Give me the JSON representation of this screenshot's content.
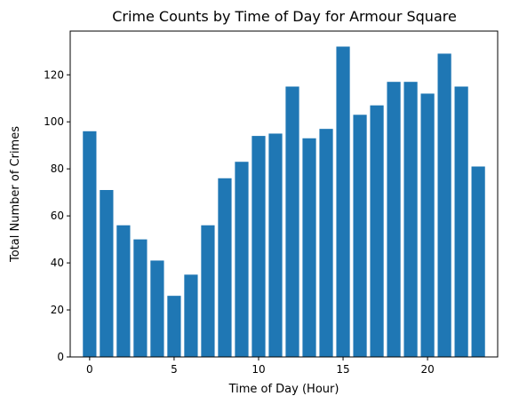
{
  "chart_data": {
    "type": "bar",
    "title": "Crime Counts by Time of Day for Armour Square",
    "xlabel": "Time of Day (Hour)",
    "ylabel": "Total Number of Crimes",
    "categories": [
      0,
      1,
      2,
      3,
      4,
      5,
      6,
      7,
      8,
      9,
      10,
      11,
      12,
      13,
      14,
      15,
      16,
      17,
      18,
      19,
      20,
      21,
      22,
      23
    ],
    "values": [
      96,
      71,
      56,
      50,
      41,
      26,
      35,
      56,
      76,
      83,
      94,
      95,
      115,
      93,
      97,
      132,
      103,
      107,
      117,
      117,
      112,
      129,
      115,
      81
    ],
    "color": "#1f77b4",
    "xticks": [
      0,
      5,
      10,
      15,
      20
    ],
    "yticks": [
      0,
      20,
      40,
      60,
      80,
      100,
      120
    ],
    "xlim": [
      -1.15,
      24.15
    ],
    "ylim": [
      0,
      138.6
    ],
    "grid": false
  }
}
